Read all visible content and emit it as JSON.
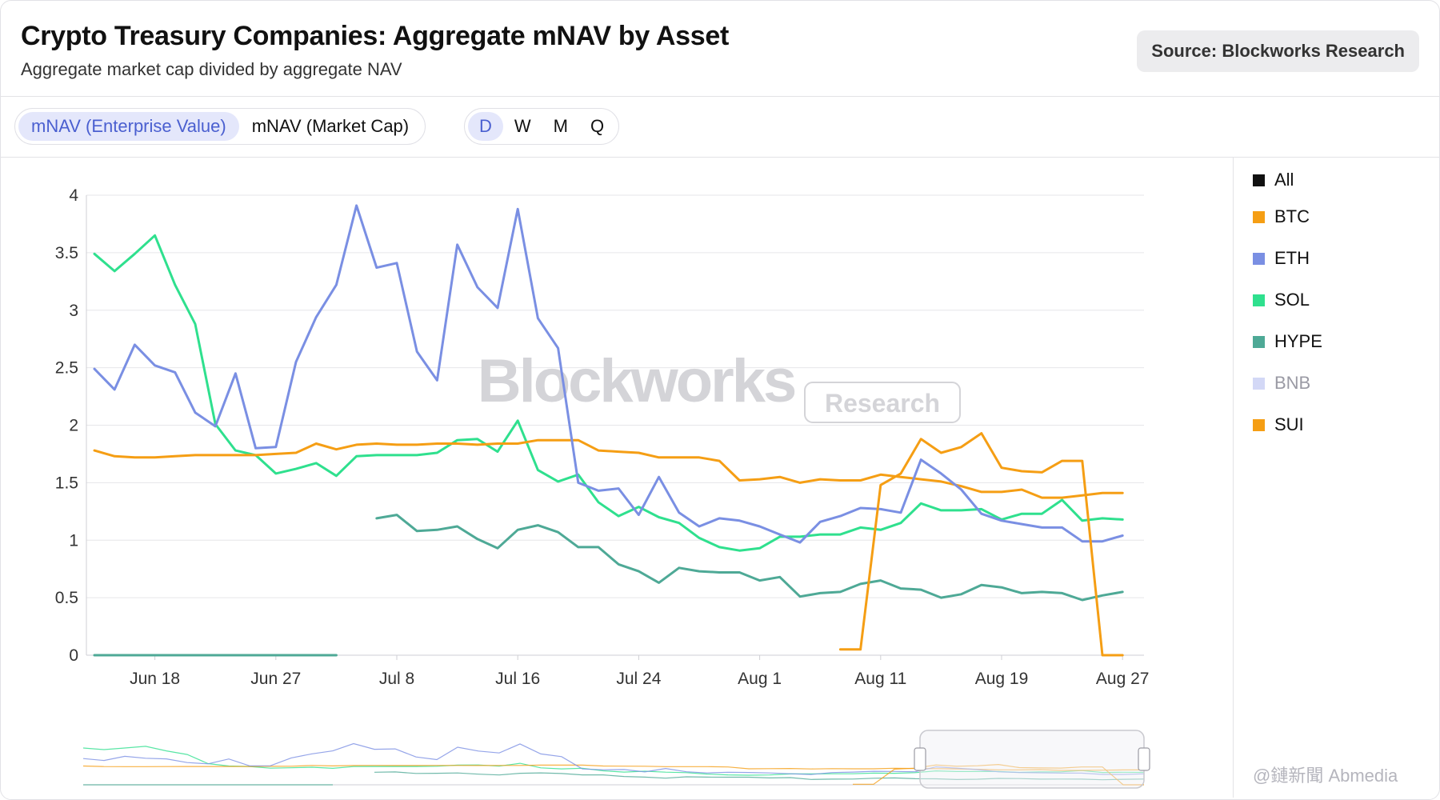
{
  "title": "Crypto Treasury Companies: Aggregate mNAV by Asset",
  "subtitle": "Aggregate market cap divided by aggregate NAV",
  "source": "Source: Blockworks Research",
  "metric_toggle": [
    "mNAV (Enterprise Value)",
    "mNAV (Market Cap)"
  ],
  "metric_active": 0,
  "period_toggle": [
    "D",
    "W",
    "M",
    "Q"
  ],
  "period_active": 0,
  "watermark": {
    "brand": "Blockworks",
    "tag": "Research"
  },
  "corner_credit": "@鏈新聞 Abmedia",
  "chart_data": {
    "type": "line",
    "ylim": [
      0,
      4
    ],
    "yticks": [
      "0",
      "0.5",
      "1",
      "1.5",
      "2",
      "2.5",
      "3",
      "3.5",
      "4"
    ],
    "xlim": [
      0,
      52
    ],
    "xtick_positions": [
      3,
      9,
      15,
      21,
      27,
      33,
      39,
      45,
      51
    ],
    "xtick_labels": [
      "Jun 18",
      "Jun 27",
      "Jul 8",
      "Jul 16",
      "Jul 24",
      "Aug 1",
      "Aug 11",
      "Aug 19",
      "Aug 27"
    ],
    "legend_position": "right",
    "grid": true,
    "series": [
      {
        "name": "All",
        "color": "#111111",
        "x": [],
        "values": []
      },
      {
        "name": "BTC",
        "color": "#f59e14",
        "x": [
          0,
          1,
          2,
          3,
          4,
          5,
          6,
          7,
          8,
          9,
          10,
          11,
          12,
          13,
          14,
          15,
          16,
          17,
          18,
          19,
          20,
          21,
          22,
          23,
          24,
          25,
          26,
          27,
          28,
          29,
          30,
          31,
          32,
          33,
          34,
          35,
          36,
          37,
          38,
          39,
          40,
          41,
          42,
          43,
          44,
          45,
          46,
          47,
          48,
          49,
          50,
          51
        ],
        "values": [
          1.78,
          1.73,
          1.72,
          1.72,
          1.73,
          1.74,
          1.74,
          1.74,
          1.74,
          1.75,
          1.76,
          1.84,
          1.79,
          1.83,
          1.84,
          1.83,
          1.83,
          1.84,
          1.84,
          1.83,
          1.84,
          1.84,
          1.87,
          1.87,
          1.87,
          1.78,
          1.77,
          1.76,
          1.72,
          1.72,
          1.72,
          1.69,
          1.52,
          1.53,
          1.55,
          1.5,
          1.53,
          1.52,
          1.52,
          1.57,
          1.55,
          1.53,
          1.51,
          1.47,
          1.42,
          1.42,
          1.44,
          1.37,
          1.37,
          1.39,
          1.41,
          1.41
        ]
      },
      {
        "name": "ETH",
        "color": "#7a8fe3",
        "x": [
          0,
          1,
          2,
          3,
          4,
          5,
          6,
          7,
          8,
          9,
          10,
          11,
          12,
          13,
          14,
          15,
          16,
          17,
          18,
          19,
          20,
          21,
          22,
          23,
          24,
          25,
          26,
          27,
          28,
          29,
          30,
          31,
          32,
          33,
          34,
          35,
          36,
          37,
          38,
          39,
          40,
          41,
          42,
          43,
          44,
          45,
          46,
          47,
          48,
          49,
          50,
          51
        ],
        "values": [
          2.49,
          2.31,
          2.7,
          2.52,
          2.46,
          2.11,
          1.99,
          2.45,
          1.8,
          1.81,
          2.55,
          2.94,
          3.22,
          3.91,
          3.37,
          3.41,
          2.64,
          2.39,
          3.57,
          3.2,
          3.02,
          3.88,
          2.93,
          2.67,
          1.5,
          1.43,
          1.45,
          1.22,
          1.55,
          1.24,
          1.12,
          1.19,
          1.17,
          1.12,
          1.05,
          0.98,
          1.16,
          1.21,
          1.28,
          1.27,
          1.24,
          1.7,
          1.58,
          1.44,
          1.23,
          1.17,
          1.14,
          1.11,
          1.11,
          0.99,
          0.99,
          1.04
        ]
      },
      {
        "name": "SOL",
        "color": "#2fe08e",
        "x": [
          0,
          1,
          2,
          3,
          4,
          5,
          6,
          7,
          8,
          9,
          10,
          11,
          12,
          13,
          14,
          15,
          16,
          17,
          18,
          19,
          20,
          21,
          22,
          23,
          24,
          25,
          26,
          27,
          28,
          29,
          30,
          31,
          32,
          33,
          34,
          35,
          36,
          37,
          38,
          39,
          40,
          41,
          42,
          43,
          44,
          45,
          46,
          47,
          48,
          49,
          50,
          51
        ],
        "values": [
          3.49,
          3.34,
          3.49,
          3.65,
          3.22,
          2.88,
          2.01,
          1.78,
          1.74,
          1.58,
          1.62,
          1.67,
          1.56,
          1.73,
          1.74,
          1.74,
          1.74,
          1.76,
          1.87,
          1.88,
          1.77,
          2.04,
          1.61,
          1.51,
          1.57,
          1.33,
          1.21,
          1.29,
          1.2,
          1.15,
          1.02,
          0.94,
          0.91,
          0.93,
          1.03,
          1.03,
          1.05,
          1.05,
          1.11,
          1.09,
          1.15,
          1.32,
          1.26,
          1.26,
          1.27,
          1.18,
          1.23,
          1.23,
          1.35,
          1.17,
          1.19,
          1.18
        ]
      },
      {
        "name": "HYPE",
        "color": "#4ea996",
        "x": [
          0,
          1,
          2,
          3,
          4,
          5,
          6,
          7,
          8,
          9,
          10,
          11,
          12,
          14,
          15,
          16,
          17,
          18,
          19,
          20,
          21,
          22,
          23,
          24,
          25,
          26,
          27,
          28,
          29,
          30,
          31,
          32,
          33,
          34,
          35,
          36,
          37,
          38,
          39,
          40,
          41,
          42,
          43,
          44,
          45,
          46,
          47,
          48,
          49,
          50,
          51
        ],
        "values": [
          0,
          0,
          0,
          0,
          0,
          0,
          0,
          0,
          0,
          0,
          0,
          0,
          0,
          1.19,
          1.22,
          1.08,
          1.09,
          1.12,
          1.01,
          0.93,
          1.09,
          1.13,
          1.07,
          0.94,
          0.94,
          0.79,
          0.73,
          0.63,
          0.76,
          0.73,
          0.72,
          0.72,
          0.65,
          0.68,
          0.51,
          0.54,
          0.55,
          0.62,
          0.65,
          0.58,
          0.57,
          0.5,
          0.53,
          0.61,
          0.59,
          0.54,
          0.55,
          0.54,
          0.48,
          0.52,
          0.55
        ],
        "break_after_x": 12
      },
      {
        "name": "BNB",
        "color": "#d3d8f6",
        "x": [],
        "values": []
      },
      {
        "name": "SUI",
        "color": "#f59e14",
        "x": [
          37,
          38,
          39,
          40,
          41,
          42,
          43,
          44,
          45,
          46,
          47,
          48,
          49,
          50,
          51
        ],
        "values": [
          0.05,
          0.05,
          1.48,
          1.58,
          1.88,
          1.76,
          1.81,
          1.93,
          1.63,
          1.6,
          1.59,
          1.69,
          1.69,
          0,
          0
        ]
      }
    ]
  }
}
